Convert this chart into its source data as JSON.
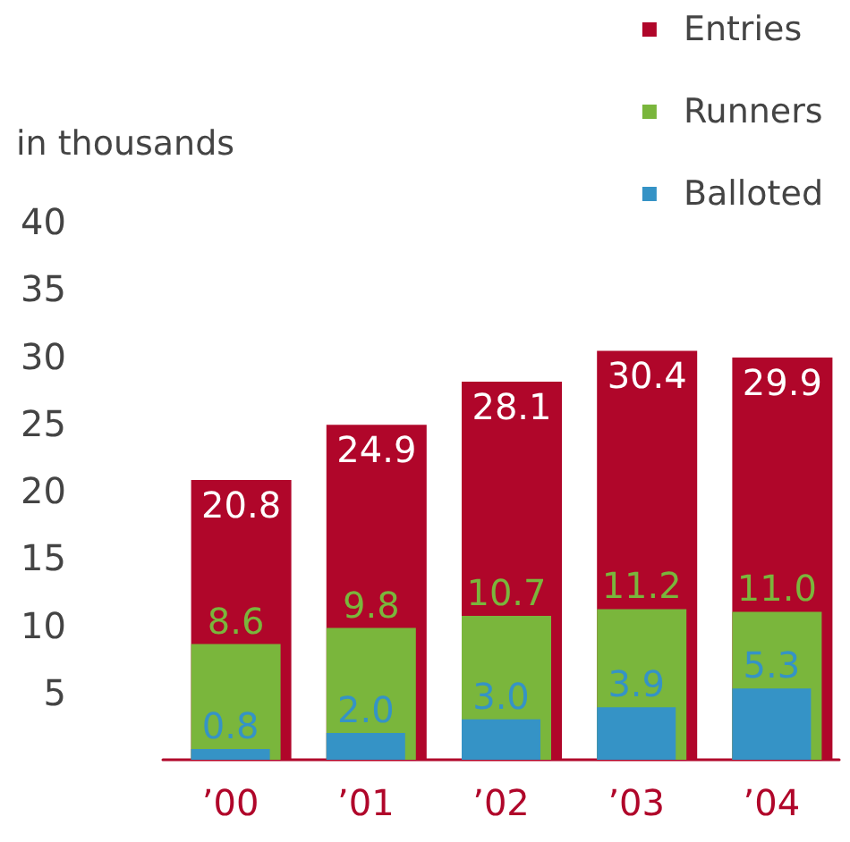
{
  "chart_data": {
    "type": "bar",
    "ylabel": "in thousands",
    "categories": [
      "’00",
      "’01",
      "’02",
      "’03",
      "’04"
    ],
    "series": [
      {
        "name": "Entries",
        "color": "#b0062a",
        "values": [
          20.8,
          24.9,
          28.1,
          30.4,
          29.9
        ],
        "value_labels": [
          "20.8",
          "24.9",
          "28.1",
          "30.4",
          "29.9"
        ]
      },
      {
        "name": "Runners",
        "color": "#7ab63c",
        "values": [
          8.6,
          9.8,
          10.7,
          11.2,
          11.0
        ],
        "value_labels": [
          "8.6",
          "9.8",
          "10.7",
          "11.2",
          "11.0"
        ]
      },
      {
        "name": "Balloted",
        "color": "#3593c6",
        "values": [
          0.8,
          2.0,
          3.0,
          3.9,
          5.3
        ],
        "value_labels": [
          "0.8",
          "2.0",
          "3.0",
          "3.9",
          "5.3"
        ]
      }
    ],
    "ylim": [
      0,
      40
    ],
    "yticks": [
      5,
      10,
      15,
      20,
      25,
      30,
      35,
      40
    ],
    "legend": "top right",
    "grid": false
  }
}
